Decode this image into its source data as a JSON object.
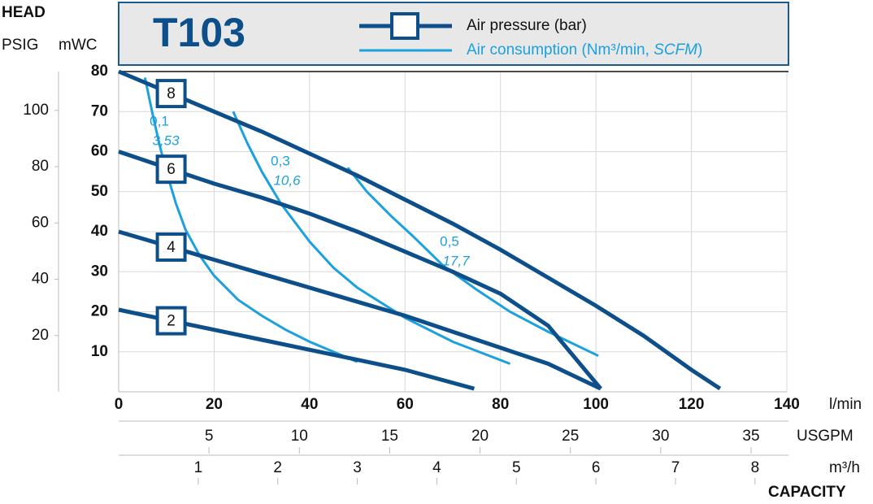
{
  "chart_data": {
    "type": "line",
    "title": "T103",
    "head_label": "HEAD",
    "y2_unit": "PSIG",
    "y_unit": "mWC",
    "x_unit": "l/min",
    "x2_unit": "USGPM",
    "x3_unit": "m³/h",
    "x_axis_title": "CAPACITY",
    "legend_pressure": "Air pressure (bar)",
    "legend_consumption": [
      "Air consumption (Nm³/min, ",
      "SCFM",
      ")"
    ],
    "pressure_color": "#0d4f8b",
    "consumption_color": "#1ba1dd",
    "grid": true,
    "xlim": [
      0,
      140
    ],
    "xticks": [
      0,
      20,
      40,
      60,
      80,
      100,
      120,
      140
    ],
    "x2lim": [
      0,
      36.98
    ],
    "x2ticks": [
      5,
      10,
      15,
      20,
      25,
      30,
      35
    ],
    "x3lim": [
      0,
      8.4
    ],
    "x3ticks": [
      1,
      2,
      3,
      4,
      5,
      6,
      7,
      8
    ],
    "ylim": [
      0,
      80
    ],
    "yticks": [
      10,
      20,
      30,
      40,
      50,
      60,
      70,
      80
    ],
    "y2lim": [
      0,
      113.8
    ],
    "y2ticks": [
      20,
      40,
      60,
      80,
      100
    ],
    "pressure_series": [
      {
        "name": "8",
        "x": [
          0,
          10,
          20,
          30,
          40,
          50,
          60,
          70,
          80,
          90,
          100,
          110,
          120,
          126
        ],
        "values": [
          80,
          75,
          70,
          65,
          59.5,
          54,
          48,
          42,
          35.5,
          28.5,
          21.5,
          14,
          5.5,
          0.8
        ]
      },
      {
        "name": "6",
        "x": [
          0,
          10,
          20,
          30,
          40,
          50,
          60,
          70,
          80,
          90,
          101
        ],
        "values": [
          60,
          56,
          52,
          48.5,
          44.5,
          40,
          35,
          30,
          24.5,
          16.5,
          0.8
        ]
      },
      {
        "name": "4",
        "x": [
          0,
          10,
          20,
          30,
          40,
          50,
          60,
          70,
          80,
          90,
          101
        ],
        "values": [
          40,
          36.5,
          33,
          29.5,
          26,
          22.5,
          19,
          15,
          11,
          7,
          0.8
        ]
      },
      {
        "name": "2",
        "x": [
          0,
          10,
          20,
          30,
          40,
          50,
          60,
          74.5
        ],
        "values": [
          20.5,
          18,
          15.5,
          13,
          10.5,
          8,
          5.5,
          0.8
        ]
      }
    ],
    "consumption_series": [
      {
        "nm3_min": "0,1",
        "scfm": "3,53",
        "x": [
          5.5,
          7,
          8.5,
          10,
          12,
          14,
          17,
          20,
          25,
          30,
          35,
          40,
          45,
          50
        ],
        "values": [
          78.5,
          70,
          62,
          55,
          47,
          40.5,
          34,
          29,
          23,
          19,
          15.5,
          12.5,
          10,
          7.5
        ]
      },
      {
        "nm3_min": "0,3",
        "scfm": "10,6",
        "x": [
          24,
          27,
          30,
          34,
          40,
          45,
          50,
          60,
          70,
          82
        ],
        "values": [
          70,
          62,
          55,
          47,
          37.5,
          31,
          26,
          18.5,
          12.5,
          7
        ]
      },
      {
        "nm3_min": "0,5",
        "scfm": "17,7",
        "x": [
          48,
          52,
          57,
          62,
          68,
          75,
          82,
          90,
          100.5
        ],
        "values": [
          56,
          50,
          44,
          38.5,
          31.5,
          25.5,
          20,
          15,
          9
        ]
      }
    ]
  }
}
